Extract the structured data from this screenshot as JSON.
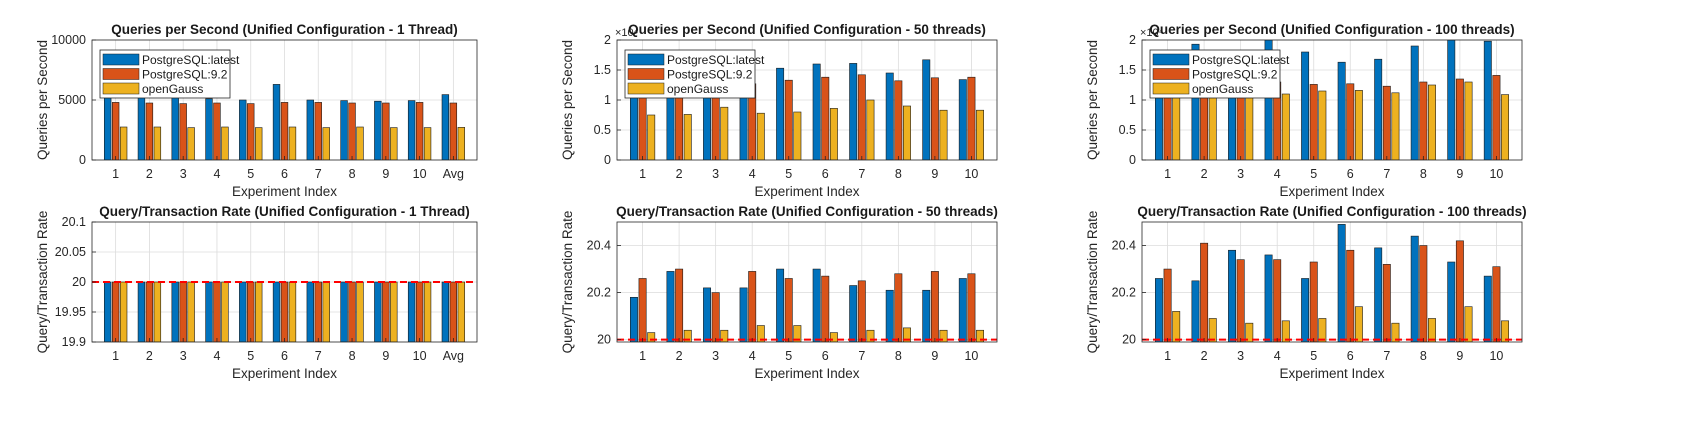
{
  "colors": {
    "series": [
      "#0072BD",
      "#D95319",
      "#EDB120"
    ],
    "reference_line": "#FF0000",
    "grid": "#dcdcdc",
    "axis": "#262626"
  },
  "chart_data": [
    {
      "type": "bar",
      "title": "Queries per Second (Unified Configuration - 1 Thread)",
      "xlabel": "Experiment Index",
      "ylabel": "Queries per Second",
      "categories": [
        "1",
        "2",
        "3",
        "4",
        "5",
        "6",
        "7",
        "8",
        "9",
        "10",
        "Avg"
      ],
      "ylim": [
        0,
        10000
      ],
      "yticks": [
        0,
        5000,
        10000
      ],
      "ytick_labels": [
        "0",
        "5000",
        "10000"
      ],
      "grid": true,
      "legend": "top-left",
      "series": [
        {
          "name": "PostgreSQL:latest",
          "values": [
            8200,
            5200,
            5500,
            5100,
            5000,
            6300,
            5000,
            4950,
            4900,
            4950,
            5450
          ]
        },
        {
          "name": "PostgreSQL:9.2",
          "values": [
            4800,
            4750,
            4700,
            4750,
            4700,
            4800,
            4800,
            4750,
            4750,
            4800,
            4750
          ]
        },
        {
          "name": "openGauss",
          "values": [
            2750,
            2750,
            2700,
            2750,
            2700,
            2750,
            2700,
            2750,
            2700,
            2700,
            2720
          ]
        }
      ]
    },
    {
      "type": "bar",
      "title": "Queries per Second (Unified Configuration - 50 threads)",
      "xlabel": "Experiment Index",
      "ylabel": "Queries per Second",
      "y_exponent": "×10⁴",
      "categories": [
        "1",
        "2",
        "3",
        "4",
        "5",
        "6",
        "7",
        "8",
        "9",
        "10"
      ],
      "ylim": [
        0,
        2
      ],
      "yticks": [
        0,
        0.5,
        1,
        1.5,
        2
      ],
      "ytick_labels": [
        "0",
        "0.5",
        "1",
        "1.5",
        "2"
      ],
      "grid": true,
      "legend": "top-left",
      "series": [
        {
          "name": "PostgreSQL:latest",
          "values": [
            1.68,
            1.5,
            1.45,
            1.42,
            1.53,
            1.6,
            1.61,
            1.45,
            1.67,
            1.34
          ]
        },
        {
          "name": "PostgreSQL:9.2",
          "values": [
            1.3,
            1.28,
            1.25,
            1.27,
            1.33,
            1.38,
            1.42,
            1.32,
            1.37,
            1.38
          ]
        },
        {
          "name": "openGauss",
          "values": [
            0.75,
            0.76,
            0.88,
            0.78,
            0.8,
            0.86,
            1.0,
            0.9,
            0.83,
            0.83
          ]
        }
      ]
    },
    {
      "type": "bar",
      "title": "Queries per Second (Unified Configuration - 100 threads)",
      "xlabel": "Experiment Index",
      "ylabel": "Queries per Second",
      "y_exponent": "×10⁴",
      "categories": [
        "1",
        "2",
        "3",
        "4",
        "5",
        "6",
        "7",
        "8",
        "9",
        "10"
      ],
      "ylim": [
        0,
        2
      ],
      "yticks": [
        0,
        0.5,
        1,
        1.5,
        2
      ],
      "ytick_labels": [
        "0",
        "0.5",
        "1",
        "1.5",
        "2"
      ],
      "grid": true,
      "legend": "top-left",
      "series": [
        {
          "name": "PostgreSQL:latest",
          "values": [
            1.78,
            1.93,
            1.8,
            2.0,
            1.8,
            1.63,
            1.68,
            1.9,
            2.0,
            1.98
          ]
        },
        {
          "name": "PostgreSQL:9.2",
          "values": [
            1.35,
            1.3,
            1.3,
            1.3,
            1.26,
            1.27,
            1.23,
            1.3,
            1.35,
            1.41
          ]
        },
        {
          "name": "openGauss",
          "values": [
            1.1,
            1.1,
            1.1,
            1.1,
            1.15,
            1.16,
            1.12,
            1.25,
            1.3,
            1.09
          ]
        }
      ]
    },
    {
      "type": "bar",
      "title": "Query/Transaction Rate (Unified Configuration - 1 Thread)",
      "xlabel": "Experiment Index",
      "ylabel": "Query/Transaction Rate",
      "categories": [
        "1",
        "2",
        "3",
        "4",
        "5",
        "6",
        "7",
        "8",
        "9",
        "10",
        "Avg"
      ],
      "ylim": [
        19.9,
        20.1
      ],
      "yticks": [
        19.9,
        19.95,
        20,
        20.05,
        20.1
      ],
      "ytick_labels": [
        "19.9",
        "19.95",
        "20",
        "20.05",
        "20.1"
      ],
      "reference_line": 20,
      "grid": true,
      "series": [
        {
          "name": "PostgreSQL:latest",
          "values": [
            20,
            20,
            20,
            20,
            20,
            20,
            20,
            20,
            20,
            20,
            20
          ]
        },
        {
          "name": "PostgreSQL:9.2",
          "values": [
            20,
            20,
            20,
            20,
            20,
            20,
            20,
            20,
            20,
            20,
            20
          ]
        },
        {
          "name": "openGauss",
          "values": [
            20,
            20,
            20,
            20,
            20,
            20,
            20,
            20,
            20,
            20,
            20
          ]
        }
      ]
    },
    {
      "type": "bar",
      "title": "Query/Transaction Rate (Unified Configuration - 50 threads)",
      "xlabel": "Experiment Index",
      "ylabel": "Query/Transaction Rate",
      "categories": [
        "1",
        "2",
        "3",
        "4",
        "5",
        "6",
        "7",
        "8",
        "9",
        "10"
      ],
      "ylim": [
        19.99,
        20.5
      ],
      "yticks": [
        20,
        20.2,
        20.4
      ],
      "ytick_labels": [
        "20",
        "20.2",
        "20.4"
      ],
      "reference_line": 20,
      "grid": true,
      "series": [
        {
          "name": "PostgreSQL:latest",
          "values": [
            20.18,
            20.29,
            20.22,
            20.22,
            20.3,
            20.3,
            20.23,
            20.21,
            20.21,
            20.26
          ]
        },
        {
          "name": "PostgreSQL:9.2",
          "values": [
            20.26,
            20.3,
            20.2,
            20.29,
            20.26,
            20.27,
            20.25,
            20.28,
            20.29,
            20.28
          ]
        },
        {
          "name": "openGauss",
          "values": [
            20.03,
            20.04,
            20.04,
            20.06,
            20.06,
            20.03,
            20.04,
            20.05,
            20.04,
            20.04
          ]
        }
      ]
    },
    {
      "type": "bar",
      "title": "Query/Transaction Rate (Unified Configuration - 100 threads)",
      "xlabel": "Experiment Index",
      "ylabel": "Query/Transaction Rate",
      "categories": [
        "1",
        "2",
        "3",
        "4",
        "5",
        "6",
        "7",
        "8",
        "9",
        "10"
      ],
      "ylim": [
        19.99,
        20.5
      ],
      "yticks": [
        20,
        20.2,
        20.4
      ],
      "ytick_labels": [
        "20",
        "20.2",
        "20.4"
      ],
      "reference_line": 20,
      "grid": true,
      "series": [
        {
          "name": "PostgreSQL:latest",
          "values": [
            20.26,
            20.25,
            20.38,
            20.36,
            20.26,
            20.49,
            20.39,
            20.44,
            20.33,
            20.27
          ]
        },
        {
          "name": "PostgreSQL:9.2",
          "values": [
            20.3,
            20.41,
            20.34,
            20.34,
            20.33,
            20.38,
            20.32,
            20.4,
            20.42,
            20.31
          ]
        },
        {
          "name": "openGauss",
          "values": [
            20.12,
            20.09,
            20.07,
            20.08,
            20.09,
            20.14,
            20.07,
            20.09,
            20.14,
            20.08
          ]
        }
      ]
    }
  ]
}
